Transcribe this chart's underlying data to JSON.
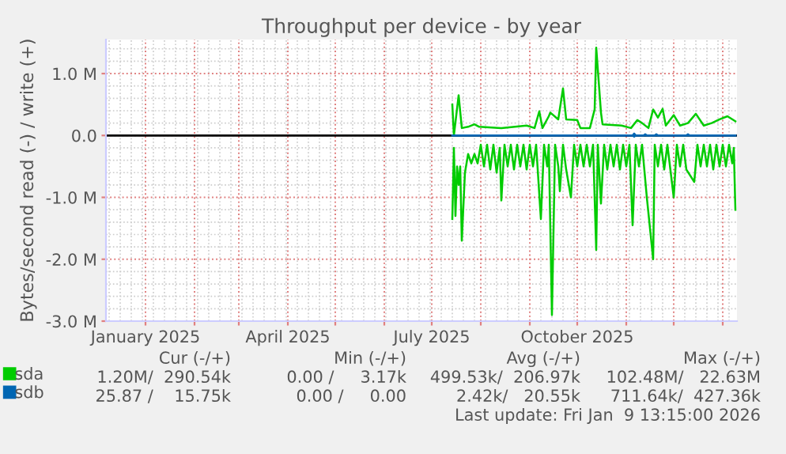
{
  "chart_data": {
    "type": "line",
    "title": "Throughput per device - by year",
    "ylabel": "Bytes/second read (-) / write (+)",
    "xlim": [
      "2024-12-07",
      "2026-01-10"
    ],
    "xticks": [
      {
        "value": "2025-01-01",
        "label": "January 2025"
      },
      {
        "value": "2025-02-01",
        "label": null
      },
      {
        "value": "2025-03-01",
        "label": null
      },
      {
        "value": "2025-04-01",
        "label": "April 2025"
      },
      {
        "value": "2025-05-01",
        "label": null
      },
      {
        "value": "2025-06-01",
        "label": null
      },
      {
        "value": "2025-07-01",
        "label": "July 2025"
      },
      {
        "value": "2025-08-01",
        "label": null
      },
      {
        "value": "2025-09-01",
        "label": null
      },
      {
        "value": "2025-10-01",
        "label": "October 2025"
      },
      {
        "value": "2025-11-01",
        "label": null
      },
      {
        "value": "2025-12-01",
        "label": null
      },
      {
        "value": "2026-01-01",
        "label": null
      }
    ],
    "ylim": [
      -3000000,
      1550000
    ],
    "yticks": [
      {
        "value": -3000000,
        "label": "-3.0 M"
      },
      {
        "value": -2000000,
        "label": "-2.0 M"
      },
      {
        "value": -1000000,
        "label": "-1.0 M"
      },
      {
        "value": 0,
        "label": "0.0"
      },
      {
        "value": 1000000,
        "label": "1.0 M"
      }
    ],
    "grid": true,
    "legend": "bottom",
    "marker": "none",
    "line_style": "solid",
    "ref_lines": [
      {
        "axis": "y",
        "value": 0,
        "color": "#000000"
      }
    ],
    "series": [
      {
        "name": "sda",
        "color": "#00cc00",
        "x": [
          "2025-07-14",
          "2025-07-15",
          "2025-07-18",
          "2025-07-20",
          "2025-07-24",
          "2025-07-28",
          "2025-07-31",
          "2025-08-14",
          "2025-08-30",
          "2025-09-04",
          "2025-09-07",
          "2025-09-09",
          "2025-09-13",
          "2025-09-14",
          "2025-09-19",
          "2025-09-22",
          "2025-09-24",
          "2025-10-01",
          "2025-10-03",
          "2025-10-09",
          "2025-10-12",
          "2025-10-13",
          "2025-10-16",
          "2025-10-17",
          "2025-10-29",
          "2025-11-04",
          "2025-11-08",
          "2025-11-11",
          "2025-11-15",
          "2025-11-18",
          "2025-11-21",
          "2025-11-24",
          "2025-11-26",
          "2025-12-01",
          "2025-12-05",
          "2025-12-10",
          "2025-12-15",
          "2025-12-20",
          "2025-12-25",
          "2025-12-30",
          "2026-01-04",
          "2026-01-09"
        ],
        "values": [
          500000,
          0,
          650000,
          120000,
          140000,
          180000,
          140000,
          120000,
          160000,
          120000,
          390000,
          120000,
          310000,
          370000,
          260000,
          760000,
          260000,
          250000,
          120000,
          120000,
          420000,
          1420000,
          370000,
          180000,
          160000,
          120000,
          250000,
          200000,
          120000,
          420000,
          290000,
          430000,
          160000,
          330000,
          160000,
          200000,
          350000,
          160000,
          200000,
          260000,
          310000,
          230000
        ]
      },
      {
        "color": "#00cc00",
        "x": [
          "2025-07-14",
          "2025-07-15",
          "2025-07-16",
          "2025-07-17",
          "2025-07-18",
          "2025-07-19",
          "2025-07-20",
          "2025-07-22",
          "2025-07-24",
          "2025-07-26",
          "2025-07-28",
          "2025-07-30",
          "2025-08-01",
          "2025-08-03",
          "2025-08-05",
          "2025-08-07",
          "2025-08-09",
          "2025-08-11",
          "2025-08-13",
          "2025-08-14",
          "2025-08-16",
          "2025-08-18",
          "2025-08-20",
          "2025-08-22",
          "2025-08-24",
          "2025-08-26",
          "2025-08-28",
          "2025-08-30",
          "2025-09-01",
          "2025-09-03",
          "2025-09-05",
          "2025-09-08",
          "2025-09-10",
          "2025-09-12",
          "2025-09-13",
          "2025-09-15",
          "2025-09-17",
          "2025-09-19",
          "2025-09-20",
          "2025-09-22",
          "2025-09-24",
          "2025-09-27",
          "2025-09-29",
          "2025-10-01",
          "2025-10-03",
          "2025-10-05",
          "2025-10-07",
          "2025-10-09",
          "2025-10-11",
          "2025-10-13",
          "2025-10-14",
          "2025-10-16",
          "2025-10-18",
          "2025-10-20",
          "2025-10-22",
          "2025-10-24",
          "2025-10-26",
          "2025-10-28",
          "2025-10-30",
          "2025-11-01",
          "2025-11-03",
          "2025-11-05",
          "2025-11-07",
          "2025-11-09",
          "2025-11-11",
          "2025-11-14",
          "2025-11-18",
          "2025-11-19",
          "2025-11-21",
          "2025-11-23",
          "2025-11-25",
          "2025-11-27",
          "2025-12-01",
          "2025-12-03",
          "2025-12-05",
          "2025-12-07",
          "2025-12-09",
          "2025-12-14",
          "2025-12-16",
          "2025-12-18",
          "2025-12-20",
          "2025-12-22",
          "2025-12-24",
          "2025-12-26",
          "2025-12-28",
          "2025-12-30",
          "2026-01-01",
          "2026-01-03",
          "2026-01-05",
          "2026-01-07",
          "2026-01-08",
          "2026-01-09"
        ],
        "values": [
          -1350000,
          -200000,
          -1300000,
          -500000,
          -800000,
          -500000,
          -1700000,
          -600000,
          -300000,
          -450000,
          -300000,
          -450000,
          -150000,
          -500000,
          -150000,
          -550000,
          -150000,
          -600000,
          -200000,
          -1050000,
          -150000,
          -500000,
          -150000,
          -550000,
          -150000,
          -500000,
          -150000,
          -550000,
          -150000,
          -500000,
          -150000,
          -1350000,
          -150000,
          -500000,
          -150000,
          -2900000,
          -150000,
          -500000,
          -900000,
          -150000,
          -550000,
          -1000000,
          -150000,
          -500000,
          -150000,
          -500000,
          -150000,
          -500000,
          -150000,
          -1850000,
          -150000,
          -1100000,
          -150000,
          -550000,
          -150000,
          -500000,
          -150000,
          -550000,
          -150000,
          -500000,
          -150000,
          -1450000,
          -150000,
          -500000,
          -150000,
          -1000000,
          -2000000,
          -150000,
          -500000,
          -150000,
          -550000,
          -150000,
          -1000000,
          -150000,
          -500000,
          -150000,
          -550000,
          -750000,
          -150000,
          -500000,
          -150000,
          -500000,
          -150000,
          -550000,
          -150000,
          -500000,
          -150000,
          -500000,
          -150000,
          -450000,
          -200000,
          -1200000
        ]
      },
      {
        "name": "sdb",
        "color": "#0066b3",
        "x": [
          "2025-07-14",
          "2025-11-05",
          "2025-11-06",
          "2025-11-07",
          "2025-11-12",
          "2025-11-13",
          "2025-11-14",
          "2025-11-19",
          "2025-11-20",
          "2025-11-21",
          "2025-12-09",
          "2025-12-10",
          "2025-12-11",
          "2026-01-09"
        ],
        "values": [
          0,
          0,
          30000,
          0,
          0,
          20000,
          0,
          0,
          20000,
          0,
          0,
          20000,
          0,
          0
        ]
      },
      {
        "color": "#0066b3",
        "x": [
          "2025-07-14",
          "2025-11-05",
          "2025-11-06",
          "2025-11-07",
          "2026-01-09"
        ],
        "values": [
          0,
          0,
          -20000,
          0,
          0
        ]
      }
    ],
    "annotations": [
      "Cur (-/+)",
      "Min (-/+)",
      "Avg (-/+)",
      "Max (-/+)",
      "1.20M/  290.54k",
      "0.00 /     3.17k",
      "499.53k/  206.97k",
      "102.48M/   22.63M",
      "25.87 /    15.75k",
      "0.00 /     0.00",
      "2.42k/   20.55k",
      "711.64k/  427.36k",
      "Last update: Fri Jan  9 13:15:00 2026"
    ]
  }
}
